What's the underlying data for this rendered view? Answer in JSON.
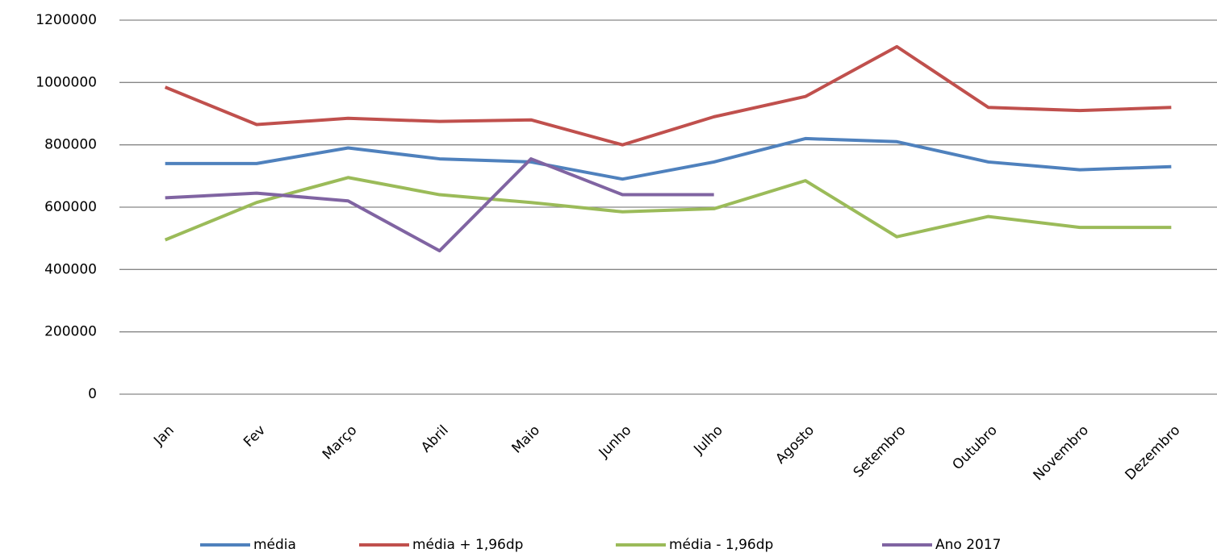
{
  "chart_data": {
    "type": "line",
    "categories": [
      "Jan",
      "Fev",
      "Março",
      "Abril",
      "Maio",
      "Junho",
      "Julho",
      "Agosto",
      "Setembro",
      "Outubro",
      "Novembro",
      "Dezembro"
    ],
    "series": [
      {
        "name": "média",
        "color": "#4f81bd",
        "values": [
          740000,
          740000,
          790000,
          755000,
          745000,
          690000,
          745000,
          820000,
          810000,
          745000,
          720000,
          730000
        ]
      },
      {
        "name": "média + 1,96dp",
        "color": "#c0504d",
        "values": [
          985000,
          865000,
          885000,
          875000,
          880000,
          800000,
          890000,
          955000,
          1115000,
          920000,
          910000,
          920000
        ]
      },
      {
        "name": "média - 1,96dp",
        "color": "#9bbb59",
        "values": [
          495000,
          615000,
          695000,
          640000,
          615000,
          585000,
          595000,
          685000,
          505000,
          570000,
          535000,
          535000
        ]
      },
      {
        "name": "Ano 2017",
        "color": "#8064a2",
        "values": [
          630000,
          645000,
          620000,
          460000,
          755000,
          640000,
          640000,
          null,
          null,
          null,
          null,
          null
        ]
      }
    ],
    "ylim": [
      0,
      1200000
    ],
    "yticks": [
      0,
      200000,
      400000,
      600000,
      800000,
      1000000,
      1200000
    ],
    "grid": true,
    "legend": "bottom"
  }
}
